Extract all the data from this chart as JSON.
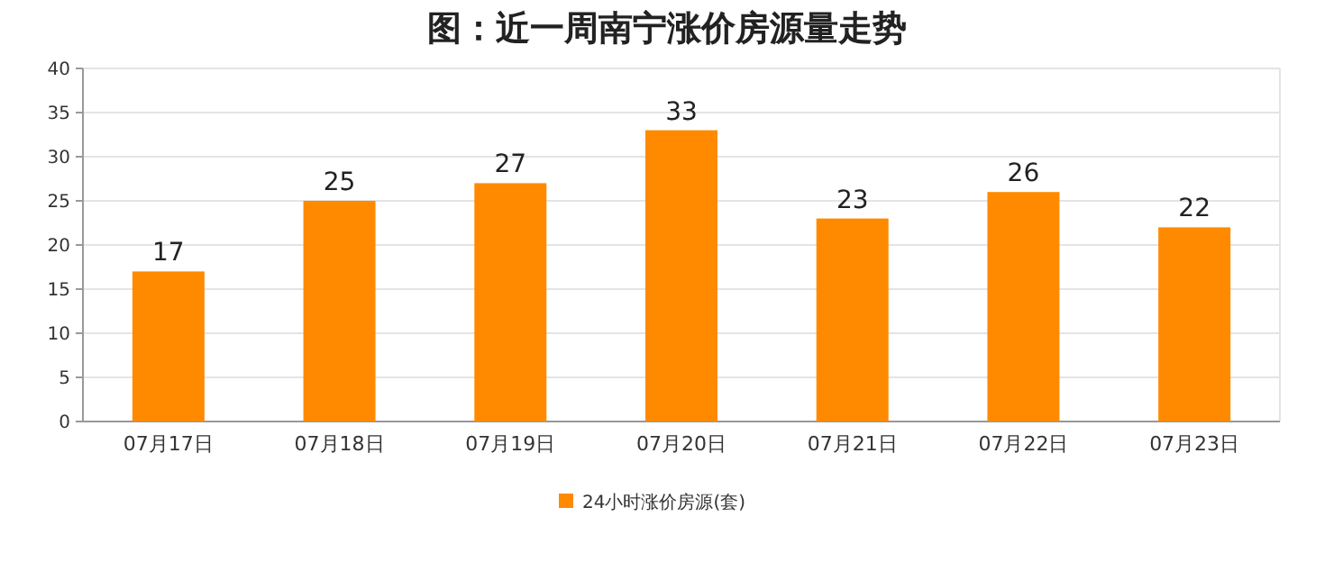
{
  "chart_data": {
    "type": "bar",
    "title": "图：近一周南宁涨价房源量走势",
    "categories": [
      "07月17日",
      "07月18日",
      "07月19日",
      "07月20日",
      "07月21日",
      "07月22日",
      "07月23日"
    ],
    "series": [
      {
        "name": "24小时涨价房源(套)",
        "color": "#ff8a00",
        "values": [
          17,
          25,
          27,
          33,
          23,
          26,
          22
        ]
      }
    ],
    "ylim": [
      0,
      40
    ],
    "yticks": [
      0,
      5,
      10,
      15,
      20,
      25,
      30,
      35,
      40
    ],
    "grid": "y",
    "legend": "bottom",
    "data_labels": true
  }
}
